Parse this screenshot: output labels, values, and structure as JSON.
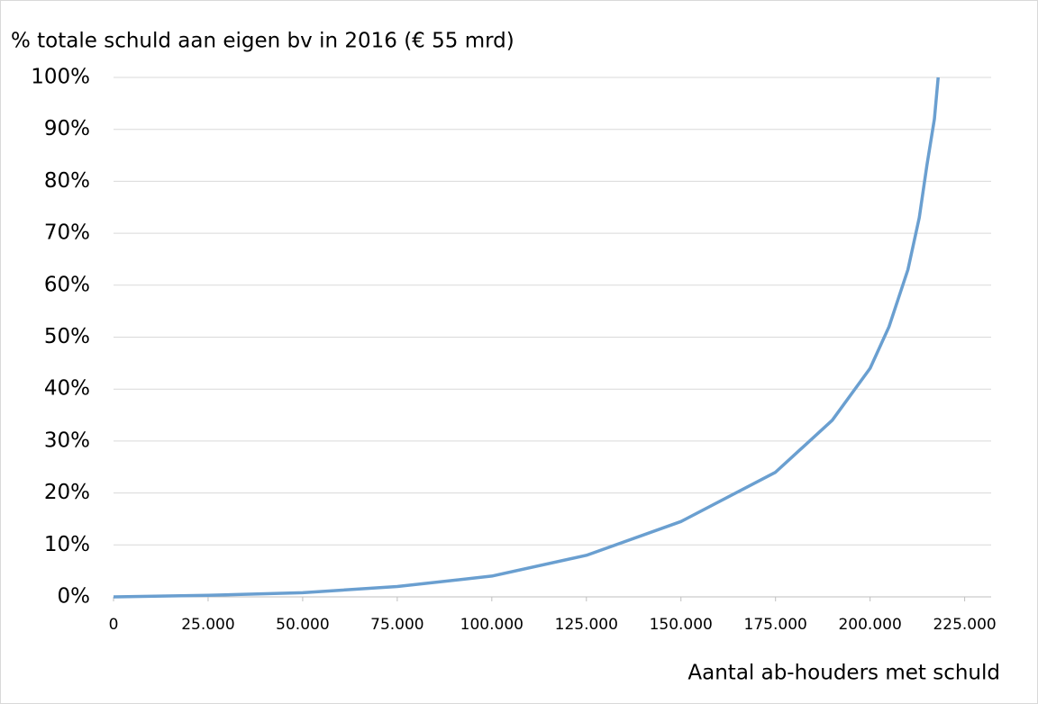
{
  "chart_data": {
    "type": "line",
    "title": "% totale schuld aan eigen bv in 2016 (€ 55 mrd)",
    "x_label": "Aantal ab-houders met schuld",
    "x": [
      0,
      25000,
      50000,
      75000,
      100000,
      125000,
      150000,
      175000,
      190000,
      200000,
      205000,
      210000,
      213000,
      215000,
      217000,
      218000
    ],
    "series": [
      {
        "name": "% totale schuld",
        "color": "#6a9fd0",
        "values": [
          0,
          0.3,
          0.8,
          2,
          4,
          8,
          14.5,
          24,
          34,
          44,
          52,
          63,
          73,
          83,
          92,
          100
        ]
      }
    ],
    "xlim": [
      0,
      232000
    ],
    "xticks": [
      0,
      {
        "value": 25000,
        "label": "25.000"
      },
      {
        "value": 50000,
        "label": "50.000"
      },
      {
        "value": 75000,
        "label": "75.000"
      },
      {
        "value": 100000,
        "label": "100.000"
      },
      {
        "value": 125000,
        "label": "125.000"
      },
      {
        "value": 150000,
        "label": "150.000"
      },
      {
        "value": 175000,
        "label": "175.000"
      },
      {
        "value": 200000,
        "label": "200.000"
      },
      {
        "value": 225000,
        "label": "225.000"
      }
    ],
    "ylim": [
      0,
      100
    ],
    "yticks": [
      {
        "value": 0,
        "label": "0%"
      },
      {
        "value": 10,
        "label": "10%"
      },
      {
        "value": 20,
        "label": "20%"
      },
      {
        "value": 30,
        "label": "30%"
      },
      {
        "value": 40,
        "label": "40%"
      },
      {
        "value": 50,
        "label": "50%"
      },
      {
        "value": 60,
        "label": "60%"
      },
      {
        "value": 70,
        "label": "70%"
      },
      {
        "value": 80,
        "label": "80%"
      },
      {
        "value": 90,
        "label": "90%"
      },
      {
        "value": 100,
        "label": "100%"
      }
    ],
    "grid": true
  }
}
